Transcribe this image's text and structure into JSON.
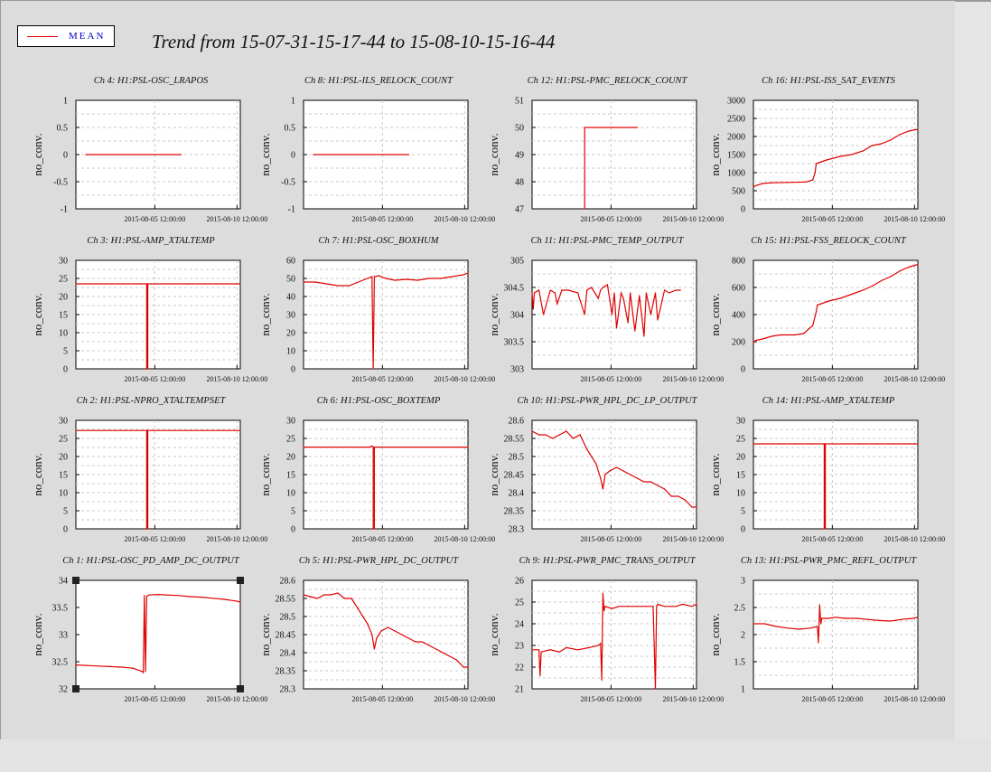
{
  "window": {
    "title": "Trend from 15-07-31-15-17-44 to 15-08-10-15-16-44"
  },
  "legend": {
    "label": "MEAN",
    "line_color": "#e00000"
  },
  "colors": {
    "trace": "#e00000",
    "plot_bg": "#ffffff",
    "canvas_bg": "#dcdcdc",
    "grid": "#c8c8c8"
  },
  "chart_data": [
    {
      "type": "line",
      "title": "Ch 4: H1:PSL-OSC_LRAPOS",
      "ylabel": "no_conv.",
      "ylim": [
        -1,
        1
      ],
      "yticks": [
        "-1",
        "-0.5",
        "0",
        "0.5",
        "1"
      ],
      "xticks": [
        "2015-08-05 12:00:00",
        "2015-08-10 12:00:00"
      ],
      "xlim": [
        0,
        10
      ],
      "grid": true,
      "series": [
        {
          "x": [
            0.6,
            6.4
          ],
          "y": [
            0,
            0
          ]
        }
      ]
    },
    {
      "type": "line",
      "title": "Ch 8: H1:PSL-ILS_RELOCK_COUNT",
      "ylabel": "no_conv.",
      "ylim": [
        -1,
        1
      ],
      "yticks": [
        "-1",
        "-0.5",
        "0",
        "0.5",
        "1"
      ],
      "xticks": [
        "2015-08-05 12:00:00",
        "2015-08-10 12:00:00"
      ],
      "xlim": [
        0,
        10
      ],
      "grid": true,
      "series": [
        {
          "x": [
            0.6,
            6.4
          ],
          "y": [
            0,
            0
          ]
        }
      ]
    },
    {
      "type": "line",
      "title": "Ch 12: H1:PSL-PMC_RELOCK_COUNT",
      "ylabel": "no_conv.",
      "ylim": [
        47,
        51
      ],
      "yticks": [
        "47",
        "48",
        "49",
        "50",
        "51"
      ],
      "xticks": [
        "2015-08-05 12:00:00",
        "2015-08-10 12:00:00"
      ],
      "xlim": [
        0,
        10
      ],
      "grid": true,
      "series": [
        {
          "x": [
            3.2,
            3.2,
            6.4
          ],
          "y": [
            47,
            50,
            50
          ]
        }
      ]
    },
    {
      "type": "line",
      "title": "Ch 16: H1:PSL-ISS_SAT_EVENTS",
      "ylabel": "no_conv.",
      "ylim": [
        0,
        3000
      ],
      "yticks": [
        "0",
        "500",
        "1000",
        "1500",
        "2000",
        "2500",
        "3000"
      ],
      "xticks": [
        "2015-08-05 12:00:00",
        "2015-08-10 12:00:00"
      ],
      "xlim": [
        0,
        7.2
      ],
      "grid": true,
      "series": [
        {
          "x": [
            0,
            0.1,
            0.4,
            0.8,
            1.5,
            2.3,
            2.6,
            2.7,
            2.75,
            3.2,
            3.8,
            4.3,
            4.8,
            5.2,
            5.6,
            6.0,
            6.4,
            6.8,
            7.2
          ],
          "y": [
            600,
            640,
            700,
            720,
            730,
            740,
            800,
            1000,
            1250,
            1350,
            1450,
            1500,
            1600,
            1750,
            1800,
            1900,
            2050,
            2150,
            2200
          ]
        }
      ]
    },
    {
      "type": "line",
      "title": "Ch 3: H1:PSL-AMP_XTALTEMP",
      "ylabel": "no_conv.",
      "ylim": [
        0,
        30
      ],
      "yticks": [
        "0",
        "5",
        "10",
        "15",
        "20",
        "25",
        "30"
      ],
      "xticks": [
        "2015-08-05 12:00:00",
        "2015-08-10 12:00:00"
      ],
      "xlim": [
        0,
        7.2
      ],
      "grid": true,
      "series": [
        {
          "x": [
            0,
            3.1,
            3.1,
            3.15,
            3.15,
            7.2
          ],
          "y": [
            23.5,
            23.5,
            0,
            0,
            23.5,
            23.5
          ]
        }
      ]
    },
    {
      "type": "line",
      "title": "Ch 7: H1:PSL-OSC_BOXHUM",
      "ylabel": "no_conv.",
      "ylim": [
        0,
        60
      ],
      "yticks": [
        "0",
        "10",
        "20",
        "30",
        "40",
        "50",
        "60"
      ],
      "xticks": [
        "2015-08-05 12:00:00",
        "2015-08-10 12:00:00"
      ],
      "xlim": [
        0,
        7.2
      ],
      "grid": true,
      "series": [
        {
          "x": [
            0,
            0.5,
            1.0,
            1.5,
            2.0,
            2.5,
            3.0,
            3.05,
            3.1,
            3.3,
            3.6,
            4.0,
            4.5,
            5.0,
            5.5,
            6.0,
            6.5,
            7.0,
            7.2
          ],
          "y": [
            48,
            48,
            47,
            46,
            46,
            48.5,
            51,
            0,
            51,
            51.5,
            50,
            49,
            49.5,
            49,
            50,
            50,
            51,
            52,
            53
          ]
        }
      ]
    },
    {
      "type": "line",
      "title": "Ch 11: H1:PSL-PMC_TEMP_OUTPUT",
      "ylabel": "no_conv.",
      "ylim": [
        303,
        305
      ],
      "yticks": [
        "303",
        "303.5",
        "304",
        "304.5",
        "305"
      ],
      "xticks": [
        "2015-08-05 12:00:00",
        "2015-08-10 12:00:00"
      ],
      "xlim": [
        0,
        7.2
      ],
      "grid": true,
      "series": [
        {
          "x": [
            0,
            0.05,
            0.1,
            0.3,
            0.5,
            0.8,
            1.0,
            1.1,
            1.3,
            1.6,
            2.0,
            2.3,
            2.4,
            2.6,
            2.9,
            3.0,
            3.1,
            3.3,
            3.5,
            3.6,
            3.7,
            3.9,
            4.0,
            4.2,
            4.3,
            4.5,
            4.7,
            4.9,
            5.0,
            5.2,
            5.4,
            5.5,
            5.8,
            6.0,
            6.3,
            6.5
          ],
          "y": [
            304.4,
            304.1,
            304.4,
            304.45,
            304.0,
            304.45,
            304.4,
            304.2,
            304.45,
            304.45,
            304.4,
            304.0,
            304.45,
            304.5,
            304.3,
            304.45,
            304.5,
            304.55,
            304.0,
            304.4,
            303.75,
            304.4,
            304.3,
            303.85,
            304.4,
            303.7,
            304.35,
            303.6,
            304.4,
            304.0,
            304.4,
            303.9,
            304.45,
            304.4,
            304.45,
            304.45
          ]
        }
      ]
    },
    {
      "type": "line",
      "title": "Ch 15: H1:PSL-FSS_RELOCK_COUNT",
      "ylabel": "no_conv.",
      "ylim": [
        0,
        800
      ],
      "yticks": [
        "0",
        "200",
        "400",
        "600",
        "800"
      ],
      "xticks": [
        "2015-08-05 12:00:00",
        "2015-08-10 12:00:00"
      ],
      "xlim": [
        0,
        7.2
      ],
      "grid": true,
      "series": [
        {
          "x": [
            0,
            0.1,
            0.4,
            0.8,
            1.2,
            1.8,
            2.2,
            2.6,
            2.75,
            2.8,
            3.3,
            3.8,
            4.3,
            4.8,
            5.2,
            5.6,
            6.0,
            6.4,
            6.8,
            7.2
          ],
          "y": [
            190,
            210,
            220,
            240,
            250,
            250,
            260,
            320,
            420,
            470,
            500,
            520,
            550,
            580,
            610,
            650,
            680,
            720,
            750,
            770
          ]
        }
      ]
    },
    {
      "type": "line",
      "title": "Ch 2: H1:PSL-NPRO_XTALTEMPSET",
      "ylabel": "no_conv.",
      "ylim": [
        0,
        30
      ],
      "yticks": [
        "0",
        "5",
        "10",
        "15",
        "20",
        "25",
        "30"
      ],
      "xticks": [
        "2015-08-05 12:00:00",
        "2015-08-10 12:00:00"
      ],
      "xlim": [
        0,
        7.2
      ],
      "grid": true,
      "series": [
        {
          "x": [
            0,
            3.1,
            3.1,
            3.15,
            3.15,
            7.2
          ],
          "y": [
            27.2,
            27.2,
            0,
            0,
            27.2,
            27.2
          ]
        }
      ]
    },
    {
      "type": "line",
      "title": "Ch 6: H1:PSL-OSC_BOXTEMP",
      "ylabel": "no_conv.",
      "ylim": [
        0,
        30
      ],
      "yticks": [
        "0",
        "5",
        "10",
        "15",
        "20",
        "25",
        "30"
      ],
      "xticks": [
        "2015-08-05 12:00:00",
        "2015-08-10 12:00:00"
      ],
      "xlim": [
        0,
        7.2
      ],
      "grid": true,
      "series": [
        {
          "x": [
            0,
            2.9,
            3.0,
            3.05,
            3.05,
            3.1,
            3.1,
            7.2
          ],
          "y": [
            22.6,
            22.6,
            22.9,
            22.7,
            0,
            0,
            22.6,
            22.6
          ]
        }
      ]
    },
    {
      "type": "line",
      "title": "Ch 10: H1:PSL-PWR_HPL_DC_LP_OUTPUT",
      "ylabel": "no_conv.",
      "ylim": [
        28.3,
        28.6
      ],
      "yticks": [
        "28.3",
        "28.35",
        "28.4",
        "28.45",
        "28.5",
        "28.55",
        "28.6"
      ],
      "xticks": [
        "2015-08-05 12:00:00",
        "2015-08-10 12:00:00"
      ],
      "xlim": [
        0,
        7.2
      ],
      "grid": true,
      "series": [
        {
          "x": [
            0,
            0.3,
            0.6,
            0.9,
            1.2,
            1.5,
            1.8,
            2.1,
            2.4,
            2.6,
            2.8,
            3.0,
            3.1,
            3.2,
            3.4,
            3.7,
            4.0,
            4.3,
            4.6,
            4.9,
            5.2,
            5.5,
            5.8,
            6.1,
            6.4,
            6.7,
            7.0,
            7.2
          ],
          "y": [
            28.57,
            28.56,
            28.56,
            28.55,
            28.56,
            28.57,
            28.55,
            28.56,
            28.52,
            28.5,
            28.48,
            28.44,
            28.41,
            28.45,
            28.46,
            28.47,
            28.46,
            28.45,
            28.44,
            28.43,
            28.43,
            28.42,
            28.41,
            28.39,
            28.39,
            28.38,
            28.36,
            28.36
          ]
        }
      ]
    },
    {
      "type": "line",
      "title": "Ch 14: H1:PSL-AMP_XTALTEMP",
      "ylabel": "no_conv.",
      "ylim": [
        0,
        30
      ],
      "yticks": [
        "0",
        "5",
        "10",
        "15",
        "20",
        "25",
        "30"
      ],
      "xticks": [
        "2015-08-05 12:00:00",
        "2015-08-10 12:00:00"
      ],
      "xlim": [
        0,
        7.2
      ],
      "grid": true,
      "series": [
        {
          "x": [
            0,
            3.1,
            3.1,
            3.15,
            3.15,
            7.2
          ],
          "y": [
            23.5,
            23.5,
            0,
            0,
            23.5,
            23.5
          ]
        }
      ]
    },
    {
      "type": "line",
      "title": "Ch 1: H1:PSL-OSC_PD_AMP_DC_OUTPUT",
      "ylabel": "no_conv.",
      "ylim": [
        32,
        34
      ],
      "yticks": [
        "32",
        "32.5",
        "33",
        "33.5",
        "34"
      ],
      "xticks": [
        "2015-08-05 12:00:00",
        "2015-08-10 12:00:00"
      ],
      "xlim": [
        0,
        7.2
      ],
      "grid": false,
      "selected": true,
      "series": [
        {
          "x": [
            0,
            0.5,
            1.0,
            1.5,
            2.0,
            2.5,
            2.9,
            2.95,
            3.0,
            3.05,
            3.1,
            3.15,
            3.2,
            3.6,
            4.0,
            4.5,
            5.0,
            5.5,
            6.0,
            6.5,
            7.0,
            7.2
          ],
          "y": [
            32.44,
            32.43,
            32.42,
            32.41,
            32.4,
            32.38,
            32.32,
            32.3,
            33.72,
            32.32,
            33.7,
            33.72,
            33.73,
            33.74,
            33.73,
            33.72,
            33.7,
            33.69,
            33.67,
            33.65,
            33.62,
            33.6
          ]
        }
      ]
    },
    {
      "type": "line",
      "title": "Ch 5: H1:PSL-PWR_HPL_DC_OUTPUT",
      "ylabel": "no_conv.",
      "ylim": [
        28.3,
        28.6
      ],
      "yticks": [
        "28.3",
        "28.35",
        "28.4",
        "28.45",
        "28.5",
        "28.55",
        "28.6"
      ],
      "xticks": [
        "2015-08-05 12:00:00",
        "2015-08-10 12:00:00"
      ],
      "xlim": [
        0,
        7.2
      ],
      "grid": true,
      "series": [
        {
          "x": [
            0,
            0.3,
            0.6,
            0.9,
            1.2,
            1.5,
            1.8,
            2.1,
            2.4,
            2.6,
            2.8,
            3.0,
            3.1,
            3.2,
            3.4,
            3.7,
            4.0,
            4.3,
            4.6,
            4.9,
            5.2,
            5.5,
            5.8,
            6.1,
            6.4,
            6.7,
            7.0,
            7.2
          ],
          "y": [
            28.56,
            28.555,
            28.55,
            28.56,
            28.56,
            28.565,
            28.55,
            28.55,
            28.52,
            28.5,
            28.48,
            28.45,
            28.41,
            28.44,
            28.46,
            28.47,
            28.46,
            28.45,
            28.44,
            28.43,
            28.43,
            28.42,
            28.41,
            28.4,
            28.39,
            28.38,
            28.36,
            28.36
          ]
        }
      ]
    },
    {
      "type": "line",
      "title": "Ch 9: H1:PSL-PWR_PMC_TRANS_OUTPUT",
      "ylabel": "no_conv.",
      "ylim": [
        21,
        26
      ],
      "yticks": [
        "21",
        "22",
        "23",
        "24",
        "25",
        "26"
      ],
      "xticks": [
        "2015-08-05 12:00:00",
        "2015-08-10 12:00:00"
      ],
      "xlim": [
        0,
        7.2
      ],
      "grid": true,
      "series": [
        {
          "x": [
            0,
            0.3,
            0.35,
            0.4,
            0.8,
            1.2,
            1.5,
            2.0,
            2.5,
            2.9,
            3.0,
            3.05,
            3.1,
            3.15,
            3.2,
            3.5,
            3.8,
            4.2,
            4.6,
            5.0,
            5.3,
            5.4,
            5.45,
            5.5,
            5.8,
            6.0,
            6.3,
            6.6,
            7.0,
            7.2
          ],
          "y": [
            22.8,
            22.8,
            21.6,
            22.7,
            22.8,
            22.7,
            22.9,
            22.8,
            22.9,
            23.0,
            23.1,
            21.4,
            25.4,
            24.6,
            24.8,
            24.7,
            24.8,
            24.8,
            24.8,
            24.8,
            24.8,
            21.0,
            24.8,
            24.9,
            24.8,
            24.8,
            24.8,
            24.9,
            24.8,
            24.9
          ]
        }
      ]
    },
    {
      "type": "line",
      "title": "Ch 13: H1:PSL-PWR_PMC_REFL_OUTPUT",
      "ylabel": "no_conv.",
      "ylim": [
        1,
        3
      ],
      "yticks": [
        "1",
        "1.5",
        "2",
        "2.5",
        "3"
      ],
      "xticks": [
        "2015-08-05 12:00:00",
        "2015-08-10 12:00:00"
      ],
      "xlim": [
        0,
        7.2
      ],
      "grid": true,
      "series": [
        {
          "x": [
            0,
            0.5,
            1.0,
            1.5,
            2.0,
            2.5,
            2.8,
            2.85,
            2.9,
            2.95,
            3.0,
            3.1,
            3.3,
            3.6,
            4.0,
            4.5,
            5.0,
            5.5,
            6.0,
            6.5,
            7.0,
            7.2
          ],
          "y": [
            2.2,
            2.2,
            2.15,
            2.12,
            2.1,
            2.12,
            2.15,
            1.85,
            2.55,
            2.2,
            2.3,
            2.3,
            2.3,
            2.32,
            2.3,
            2.3,
            2.28,
            2.26,
            2.25,
            2.28,
            2.3,
            2.32
          ]
        }
      ]
    }
  ]
}
